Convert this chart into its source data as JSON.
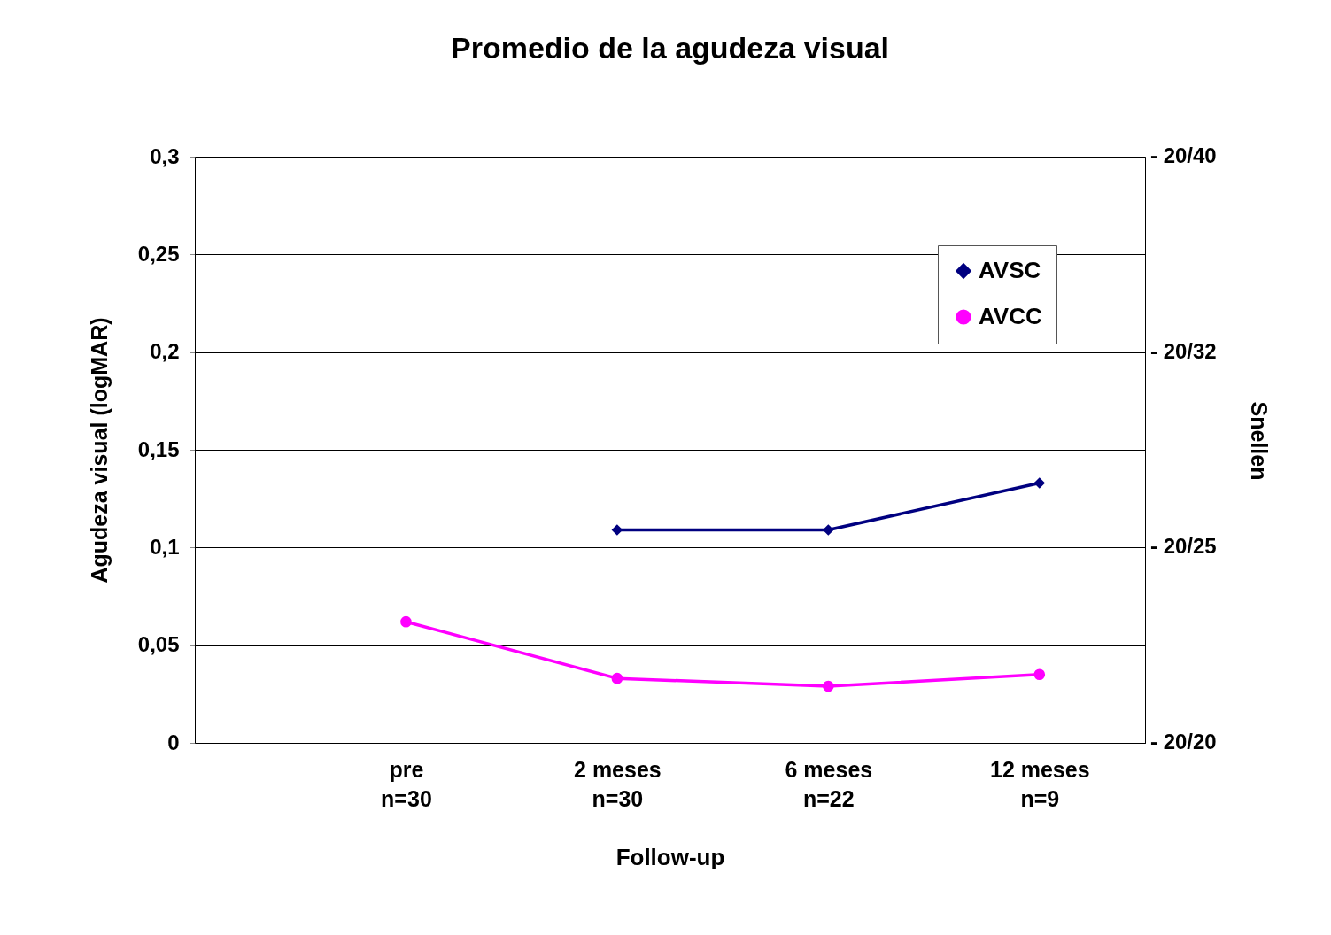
{
  "chart_data": {
    "type": "line",
    "title": "Promedio de la agudeza visual",
    "xlabel": "Follow-up",
    "ylabel": "Agudeza visual (logMAR)",
    "y2label": "Snellen",
    "categories": [
      null,
      "pre\nn=30",
      "2 meses\nn=30",
      "6 meses\nn=22",
      "12 meses\nn=9"
    ],
    "series": [
      {
        "name": "AVSC",
        "color": "#000080",
        "marker": "diamond",
        "values": [
          null,
          null,
          0.109,
          0.109,
          0.133
        ]
      },
      {
        "name": "AVCC",
        "color": "#ff00ff",
        "marker": "circle",
        "values": [
          null,
          0.062,
          0.033,
          0.029,
          0.035
        ]
      }
    ],
    "ylim": [
      0,
      0.3
    ],
    "yticks": [
      0,
      {
        "value": 0.05,
        "label": "0,05"
      },
      {
        "value": 0.1,
        "label": "0,1"
      },
      {
        "value": 0.15,
        "label": "0,15"
      },
      {
        "value": 0.2,
        "label": "0,2"
      },
      {
        "value": 0.25,
        "label": "0,25"
      },
      {
        "value": 0.3,
        "label": "0,3"
      }
    ],
    "annotations": [
      "- 20/20",
      "- 20/25",
      "- 20/32",
      "- 20/40"
    ],
    "grid": "y",
    "legend": "top right"
  }
}
